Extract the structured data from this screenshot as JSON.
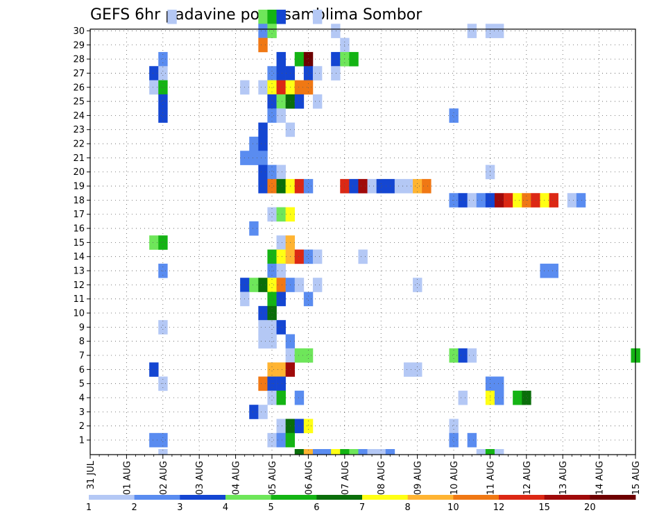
{
  "chart_data": {
    "type": "heatmap",
    "title": "GEFS 6hr padavine po ansamblima Sombor",
    "xlabel": "",
    "ylabel": "",
    "x_tick_labels": [
      "31 JUL",
      "01 AUG",
      "02 AUG",
      "03 AUG",
      "04 AUG",
      "05 AUG",
      "06 AUG",
      "07 AUG",
      "08 AUG",
      "09 AUG",
      "10 AUG",
      "11 AUG",
      "12 AUG",
      "13 AUG",
      "14 AUG",
      "15 AUG"
    ],
    "y_tick_labels": [
      "1",
      "2",
      "3",
      "4",
      "5",
      "6",
      "7",
      "8",
      "9",
      "10",
      "11",
      "12",
      "13",
      "14",
      "15",
      "16",
      "17",
      "18",
      "19",
      "20",
      "21",
      "22",
      "23",
      "24",
      "25",
      "26",
      "27",
      "28",
      "29",
      "30"
    ],
    "x_steps_per_day": 4,
    "n_steps": 61,
    "ylim": [
      0,
      30
    ],
    "grid": true,
    "colorbar": {
      "labels": [
        "1",
        "2",
        "3",
        "4",
        "5",
        "6",
        "7",
        "8",
        "10",
        "12",
        "15",
        "20"
      ],
      "colors": [
        "#b4c8f5",
        "#5a8cf0",
        "#1446d2",
        "#6ee65a",
        "#14b414",
        "#0a6e0a",
        "#ffff14",
        "#ffb432",
        "#f07814",
        "#dc2814",
        "#a00a0a",
        "#6e0000"
      ]
    },
    "levels": [
      "1",
      "2",
      "3",
      "4",
      "5",
      "6",
      "7",
      "8",
      "10",
      "12",
      "15",
      "20",
      "20+"
    ],
    "cells": [
      [
        30,
        9,
        0
      ],
      [
        30,
        19,
        3
      ],
      [
        30,
        20,
        4
      ],
      [
        30,
        21,
        2
      ],
      [
        30,
        25,
        0
      ],
      [
        29,
        19,
        1
      ],
      [
        29,
        20,
        3
      ],
      [
        29,
        27,
        0
      ],
      [
        29,
        42,
        0
      ],
      [
        29,
        44,
        0
      ],
      [
        29,
        45,
        0
      ],
      [
        28,
        19,
        8
      ],
      [
        28,
        28,
        0
      ],
      [
        27,
        8,
        1
      ],
      [
        27,
        21,
        2
      ],
      [
        27,
        23,
        4
      ],
      [
        27,
        24,
        11
      ],
      [
        27,
        27,
        2
      ],
      [
        27,
        28,
        3
      ],
      [
        27,
        29,
        4
      ],
      [
        26,
        7,
        2
      ],
      [
        26,
        8,
        0
      ],
      [
        26,
        20,
        1
      ],
      [
        26,
        21,
        2
      ],
      [
        26,
        22,
        2
      ],
      [
        26,
        24,
        2
      ],
      [
        26,
        25,
        0
      ],
      [
        26,
        27,
        0
      ],
      [
        25,
        7,
        0
      ],
      [
        25,
        8,
        4
      ],
      [
        25,
        17,
        0
      ],
      [
        25,
        19,
        0
      ],
      [
        25,
        20,
        6
      ],
      [
        25,
        21,
        9
      ],
      [
        25,
        22,
        6
      ],
      [
        25,
        23,
        8
      ],
      [
        25,
        24,
        8
      ],
      [
        24,
        8,
        2
      ],
      [
        24,
        20,
        2
      ],
      [
        24,
        21,
        3
      ],
      [
        24,
        22,
        5
      ],
      [
        24,
        23,
        2
      ],
      [
        24,
        25,
        0
      ],
      [
        23,
        8,
        2
      ],
      [
        23,
        20,
        1
      ],
      [
        23,
        21,
        0
      ],
      [
        23,
        40,
        1
      ],
      [
        22,
        19,
        2
      ],
      [
        22,
        22,
        0
      ],
      [
        21,
        18,
        1
      ],
      [
        21,
        19,
        2
      ],
      [
        20,
        17,
        1
      ],
      [
        20,
        18,
        1
      ],
      [
        20,
        19,
        1
      ],
      [
        19,
        19,
        2
      ],
      [
        19,
        20,
        1
      ],
      [
        19,
        21,
        0
      ],
      [
        19,
        44,
        0
      ],
      [
        18,
        19,
        2
      ],
      [
        18,
        20,
        8
      ],
      [
        18,
        21,
        5
      ],
      [
        18,
        22,
        6
      ],
      [
        18,
        23,
        9
      ],
      [
        18,
        24,
        1
      ],
      [
        18,
        28,
        9
      ],
      [
        18,
        29,
        2
      ],
      [
        18,
        30,
        10
      ],
      [
        18,
        31,
        0
      ],
      [
        18,
        32,
        2
      ],
      [
        18,
        33,
        2
      ],
      [
        18,
        34,
        0
      ],
      [
        18,
        35,
        0
      ],
      [
        18,
        36,
        7
      ],
      [
        18,
        37,
        8
      ],
      [
        17,
        40,
        1
      ],
      [
        17,
        41,
        2
      ],
      [
        17,
        42,
        0
      ],
      [
        17,
        43,
        1
      ],
      [
        17,
        44,
        2
      ],
      [
        17,
        45,
        10
      ],
      [
        17,
        46,
        9
      ],
      [
        17,
        47,
        6
      ],
      [
        17,
        48,
        8
      ],
      [
        17,
        49,
        9
      ],
      [
        17,
        50,
        6
      ],
      [
        17,
        51,
        9
      ],
      [
        17,
        53,
        0
      ],
      [
        17,
        54,
        1
      ],
      [
        16,
        20,
        0
      ],
      [
        16,
        21,
        3
      ],
      [
        16,
        22,
        6
      ],
      [
        15,
        18,
        1
      ],
      [
        14,
        7,
        3
      ],
      [
        14,
        8,
        4
      ],
      [
        14,
        21,
        0
      ],
      [
        14,
        22,
        7
      ],
      [
        13,
        20,
        4
      ],
      [
        13,
        21,
        6
      ],
      [
        13,
        22,
        7
      ],
      [
        13,
        23,
        9
      ],
      [
        13,
        24,
        1
      ],
      [
        13,
        25,
        0
      ],
      [
        13,
        30,
        0
      ],
      [
        12,
        8,
        1
      ],
      [
        12,
        20,
        1
      ],
      [
        12,
        21,
        0
      ],
      [
        12,
        50,
        1
      ],
      [
        12,
        51,
        1
      ],
      [
        11,
        17,
        2
      ],
      [
        11,
        18,
        3
      ],
      [
        11,
        19,
        5
      ],
      [
        11,
        20,
        6
      ],
      [
        11,
        21,
        8
      ],
      [
        11,
        22,
        1
      ],
      [
        11,
        23,
        0
      ],
      [
        11,
        25,
        0
      ],
      [
        11,
        36,
        0
      ],
      [
        10,
        17,
        0
      ],
      [
        10,
        20,
        4
      ],
      [
        10,
        21,
        2
      ],
      [
        10,
        24,
        1
      ],
      [
        9,
        19,
        2
      ],
      [
        9,
        20,
        5
      ],
      [
        8,
        8,
        0
      ],
      [
        8,
        19,
        0
      ],
      [
        8,
        20,
        0
      ],
      [
        8,
        21,
        2
      ],
      [
        7,
        19,
        0
      ],
      [
        7,
        20,
        0
      ],
      [
        7,
        22,
        1
      ],
      [
        6,
        22,
        0
      ],
      [
        6,
        23,
        3
      ],
      [
        6,
        24,
        3
      ],
      [
        6,
        40,
        3
      ],
      [
        6,
        41,
        2
      ],
      [
        6,
        42,
        0
      ],
      [
        6,
        60,
        4
      ],
      [
        5,
        7,
        2
      ],
      [
        5,
        20,
        7
      ],
      [
        5,
        21,
        7
      ],
      [
        5,
        22,
        10
      ],
      [
        5,
        35,
        0
      ],
      [
        5,
        36,
        0
      ],
      [
        4,
        8,
        0
      ],
      [
        4,
        19,
        8
      ],
      [
        4,
        20,
        2
      ],
      [
        4,
        21,
        2
      ],
      [
        4,
        44,
        1
      ],
      [
        4,
        45,
        1
      ],
      [
        3,
        20,
        0
      ],
      [
        3,
        21,
        4
      ],
      [
        3,
        23,
        1
      ],
      [
        3,
        41,
        0
      ],
      [
        3,
        44,
        6
      ],
      [
        3,
        45,
        1
      ],
      [
        3,
        47,
        4
      ],
      [
        3,
        48,
        5
      ],
      [
        2,
        18,
        2
      ],
      [
        2,
        19,
        0
      ],
      [
        1,
        21,
        0
      ],
      [
        1,
        22,
        5
      ],
      [
        1,
        23,
        2
      ],
      [
        1,
        24,
        6
      ],
      [
        1,
        40,
        0
      ],
      [
        0,
        7,
        1
      ],
      [
        0,
        8,
        1
      ],
      [
        0,
        20,
        0
      ],
      [
        0,
        21,
        1
      ],
      [
        0,
        22,
        4
      ],
      [
        0,
        40,
        1
      ],
      [
        0,
        42,
        1
      ],
      [
        -1,
        8,
        0
      ],
      [
        -1,
        23,
        5
      ],
      [
        -1,
        24,
        7
      ],
      [
        -1,
        25,
        1
      ],
      [
        -1,
        26,
        1
      ],
      [
        -1,
        27,
        6
      ],
      [
        -1,
        28,
        4
      ],
      [
        -1,
        29,
        3
      ],
      [
        -1,
        30,
        1
      ],
      [
        -1,
        31,
        0
      ],
      [
        -1,
        32,
        0
      ],
      [
        -1,
        33,
        1
      ],
      [
        -1,
        43,
        0
      ],
      [
        -1,
        44,
        4
      ],
      [
        -1,
        45,
        0
      ]
    ]
  }
}
